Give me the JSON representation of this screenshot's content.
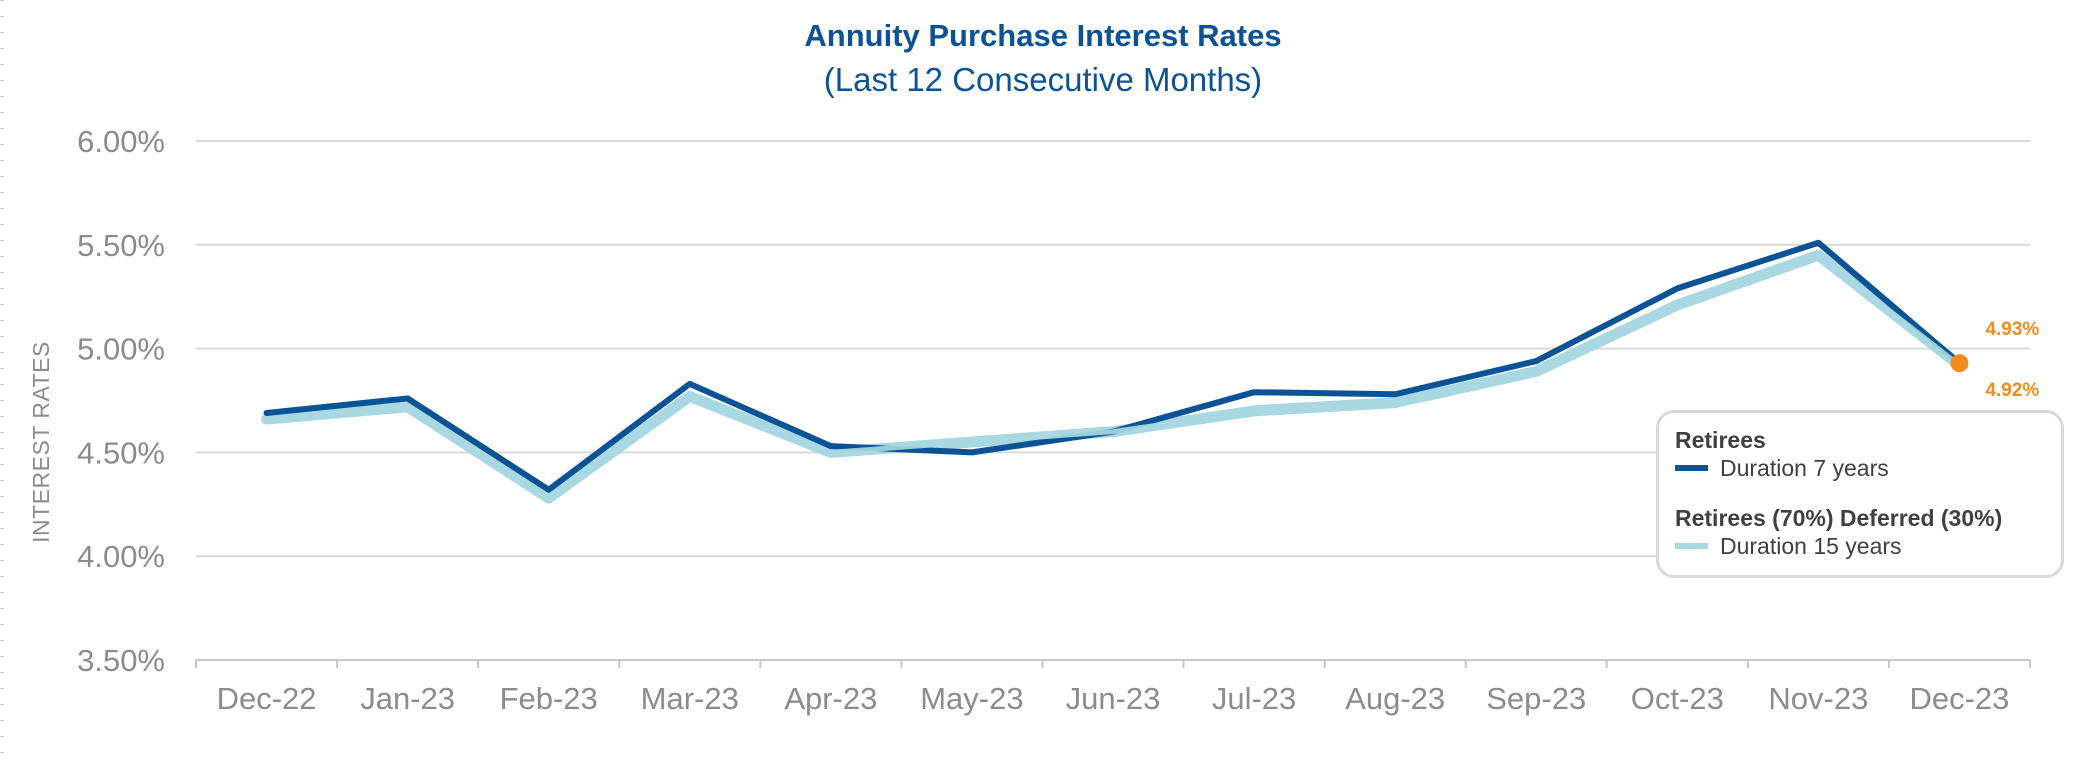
{
  "chart_data": {
    "type": "line",
    "title": "Annuity Purchase Interest Rates",
    "subtitle": "(Last 12 Consecutive Months)",
    "ylabel": "INTEREST RATES",
    "xlabel": "",
    "ylim": [
      3.5,
      6.0
    ],
    "yticks": [
      6.0,
      5.5,
      5.0,
      4.5,
      4.0,
      3.5
    ],
    "ytick_labels": [
      "6.00%",
      "5.50%",
      "5.00%",
      "4.50%",
      "4.00%",
      "3.50%"
    ],
    "categories": [
      "Dec-22",
      "Jan-23",
      "Feb-23",
      "Mar-23",
      "Apr-23",
      "May-23",
      "Jun-23",
      "Jul-23",
      "Aug-23",
      "Sep-23",
      "Oct-23",
      "Nov-23",
      "Dec-23"
    ],
    "series": [
      {
        "name": "Duration 7 years",
        "group": "Retirees",
        "color": "#0b5394",
        "values": [
          4.69,
          4.76,
          4.32,
          4.83,
          4.53,
          4.5,
          4.6,
          4.79,
          4.78,
          4.94,
          5.29,
          5.51,
          4.93
        ]
      },
      {
        "name": "Duration 15 years",
        "group": "Retirees (70%) Deferred (30%)",
        "color": "#a8d8e2",
        "values": [
          4.66,
          4.72,
          4.28,
          4.77,
          4.5,
          4.55,
          4.6,
          4.7,
          4.74,
          4.89,
          5.21,
          5.45,
          4.92
        ]
      }
    ],
    "annotations": [
      {
        "text": "4.93%",
        "series": 0,
        "index": 12
      },
      {
        "text": "4.92%",
        "series": 1,
        "index": 12
      }
    ],
    "grid": true,
    "legend": {
      "position": "bottom-right",
      "groups": [
        {
          "header": "Retirees",
          "item": "Duration 7 years"
        },
        {
          "header": "Retirees (70%) Deferred (30%)",
          "item": "Duration 15 years"
        }
      ]
    },
    "marker_color": "#f28c1f"
  }
}
